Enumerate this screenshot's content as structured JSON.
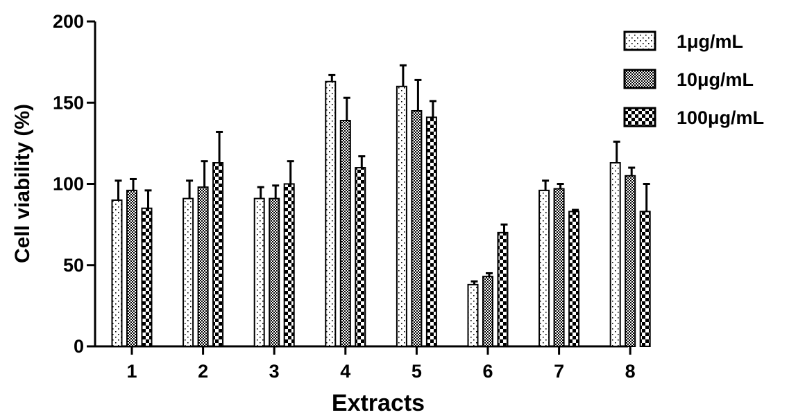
{
  "chart_data": {
    "type": "bar",
    "xlabel": "Extracts",
    "ylabel": "Cell viability (%)",
    "ylim": [
      0,
      200
    ],
    "yticks": [
      0,
      50,
      100,
      150,
      200
    ],
    "categories": [
      "1",
      "2",
      "3",
      "4",
      "5",
      "6",
      "7",
      "8"
    ],
    "legend_position": "top-right",
    "series": [
      {
        "name": "1μg/mL",
        "pattern": "sparse-dots",
        "values": [
          90,
          91,
          91,
          163,
          160,
          38,
          96,
          113
        ],
        "errors": [
          12,
          11,
          7,
          4,
          13,
          2,
          6,
          13
        ]
      },
      {
        "name": "10μg/mL",
        "pattern": "dense-checker",
        "values": [
          96,
          98,
          91,
          139,
          145,
          43,
          97,
          105
        ],
        "errors": [
          7,
          16,
          8,
          14,
          19,
          2,
          3,
          5
        ]
      },
      {
        "name": "100μg/mL",
        "pattern": "large-checker",
        "values": [
          85,
          113,
          100,
          110,
          141,
          70,
          83,
          83
        ],
        "errors": [
          11,
          19,
          14,
          7,
          10,
          5,
          1,
          17
        ]
      }
    ]
  }
}
